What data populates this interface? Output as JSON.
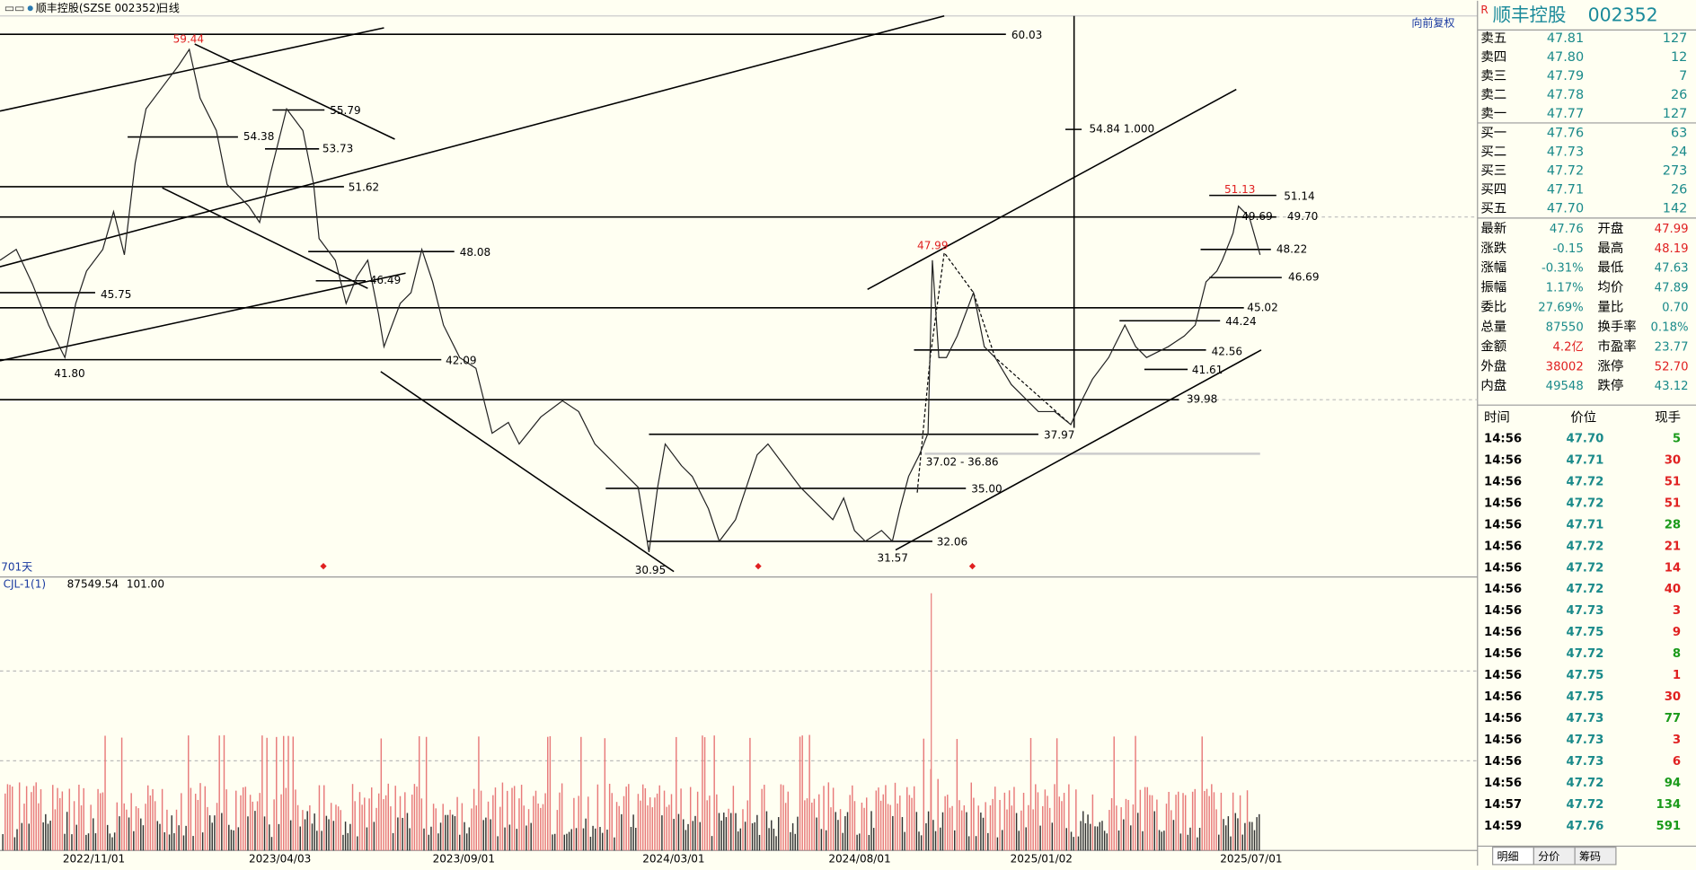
{
  "header": {
    "title": "顺丰控股(SZSE 002352)",
    "period": "日线"
  },
  "chart": {
    "restore": "向前复权",
    "price_labels": [
      "60.03",
      "59.44",
      "55.79",
      "54.38",
      "53.73",
      "51.62",
      "48.08",
      "46.49",
      "45.75",
      "42.09",
      "41.80",
      "30.95",
      "31.57",
      "32.06",
      "35.00",
      "37.02 - 36.86",
      "37.97",
      "39.98",
      "41.61",
      "42.56",
      "44.24",
      "45.02",
      "46.69",
      "48.22",
      "49.69",
      "49.70",
      "51.14",
      "51.13",
      "47.99",
      "54.84 1.000"
    ],
    "days": "701天",
    "indicator": {
      "name": "CJL-1(1)",
      "value1": "87549.54",
      "value2": "101.00"
    },
    "dates": [
      "2022/11/01",
      "2023/04/03",
      "2023/09/01",
      "2024/03/01",
      "2024/08/01",
      "2025/01/02",
      "2025/07/01"
    ]
  },
  "quote": {
    "flag": "R",
    "name": "顺丰控股",
    "code": "002352",
    "depth": [
      [
        "卖五",
        "47.81",
        "127"
      ],
      [
        "卖四",
        "47.80",
        "12"
      ],
      [
        "卖三",
        "47.79",
        "7"
      ],
      [
        "卖二",
        "47.78",
        "26"
      ],
      [
        "卖一",
        "47.77",
        "127"
      ],
      [
        "买一",
        "47.76",
        "63"
      ],
      [
        "买二",
        "47.73",
        "24"
      ],
      [
        "买三",
        "47.72",
        "273"
      ],
      [
        "买四",
        "47.71",
        "26"
      ],
      [
        "买五",
        "47.70",
        "142"
      ]
    ],
    "stats": [
      [
        {
          "label": "最新",
          "value": "47.76",
          "color": "#1a8a8a"
        },
        {
          "label": "开盘",
          "value": "47.99",
          "color": "#e02020"
        }
      ],
      [
        {
          "label": "涨跌",
          "value": "-0.15",
          "color": "#1a8a8a"
        },
        {
          "label": "最高",
          "value": "48.19",
          "color": "#e02020"
        }
      ],
      [
        {
          "label": "涨幅",
          "value": "-0.31%",
          "color": "#1a8a8a"
        },
        {
          "label": "最低",
          "value": "47.63",
          "color": "#1a8a8a"
        }
      ],
      [
        {
          "label": "振幅",
          "value": "1.17%",
          "color": "#1a8a8a"
        },
        {
          "label": "均价",
          "value": "47.89",
          "color": "#1a8a8a"
        }
      ],
      [
        {
          "label": "委比",
          "value": "27.69%",
          "color": "#1a8a8a"
        },
        {
          "label": "量比",
          "value": "0.70",
          "color": "#1a8a8a"
        }
      ],
      [
        {
          "label": "总量",
          "value": "87550",
          "color": "#1a8a8a"
        },
        {
          "label": "换手率",
          "value": "0.18%",
          "color": "#1a8a8a"
        }
      ],
      [
        {
          "label": "金额",
          "value": "4.2亿",
          "color": "#e02020"
        },
        {
          "label": "市盈率",
          "value": "23.77",
          "color": "#1a8a8a"
        }
      ],
      [
        {
          "label": "外盘",
          "value": "38002",
          "color": "#e02020"
        },
        {
          "label": "涨停",
          "value": "52.70",
          "color": "#e02020"
        }
      ],
      [
        {
          "label": "内盘",
          "value": "49548",
          "color": "#1a8a8a"
        },
        {
          "label": "跌停",
          "value": "43.12",
          "color": "#1a8a8a"
        }
      ]
    ]
  },
  "trades": {
    "headers": [
      "时间",
      "价位",
      "现手"
    ],
    "rows": [
      [
        "14:56",
        "47.70",
        "5",
        "#1a9a1a"
      ],
      [
        "14:56",
        "47.71",
        "30",
        "#e02020"
      ],
      [
        "14:56",
        "47.72",
        "51",
        "#e02020"
      ],
      [
        "14:56",
        "47.72",
        "51",
        "#e02020"
      ],
      [
        "14:56",
        "47.71",
        "28",
        "#1a9a1a"
      ],
      [
        "14:56",
        "47.72",
        "21",
        "#e02020"
      ],
      [
        "14:56",
        "47.72",
        "14",
        "#e02020"
      ],
      [
        "14:56",
        "47.72",
        "40",
        "#e02020"
      ],
      [
        "14:56",
        "47.73",
        "3",
        "#e02020"
      ],
      [
        "14:56",
        "47.75",
        "9",
        "#e02020"
      ],
      [
        "14:56",
        "47.72",
        "8",
        "#1a9a1a"
      ],
      [
        "14:56",
        "47.75",
        "1",
        "#e02020"
      ],
      [
        "14:56",
        "47.75",
        "30",
        "#e02020"
      ],
      [
        "14:56",
        "47.73",
        "77",
        "#1a9a1a"
      ],
      [
        "14:56",
        "47.73",
        "3",
        "#e02020"
      ],
      [
        "14:56",
        "47.73",
        "6",
        "#e02020"
      ],
      [
        "14:56",
        "47.72",
        "94",
        "#1a9a1a"
      ],
      [
        "14:57",
        "47.72",
        "134",
        "#1a9a1a"
      ],
      [
        "14:59",
        "47.76",
        "591",
        "#1a9a1a"
      ]
    ]
  },
  "tabs": [
    "明细",
    "分价",
    "筹码"
  ]
}
